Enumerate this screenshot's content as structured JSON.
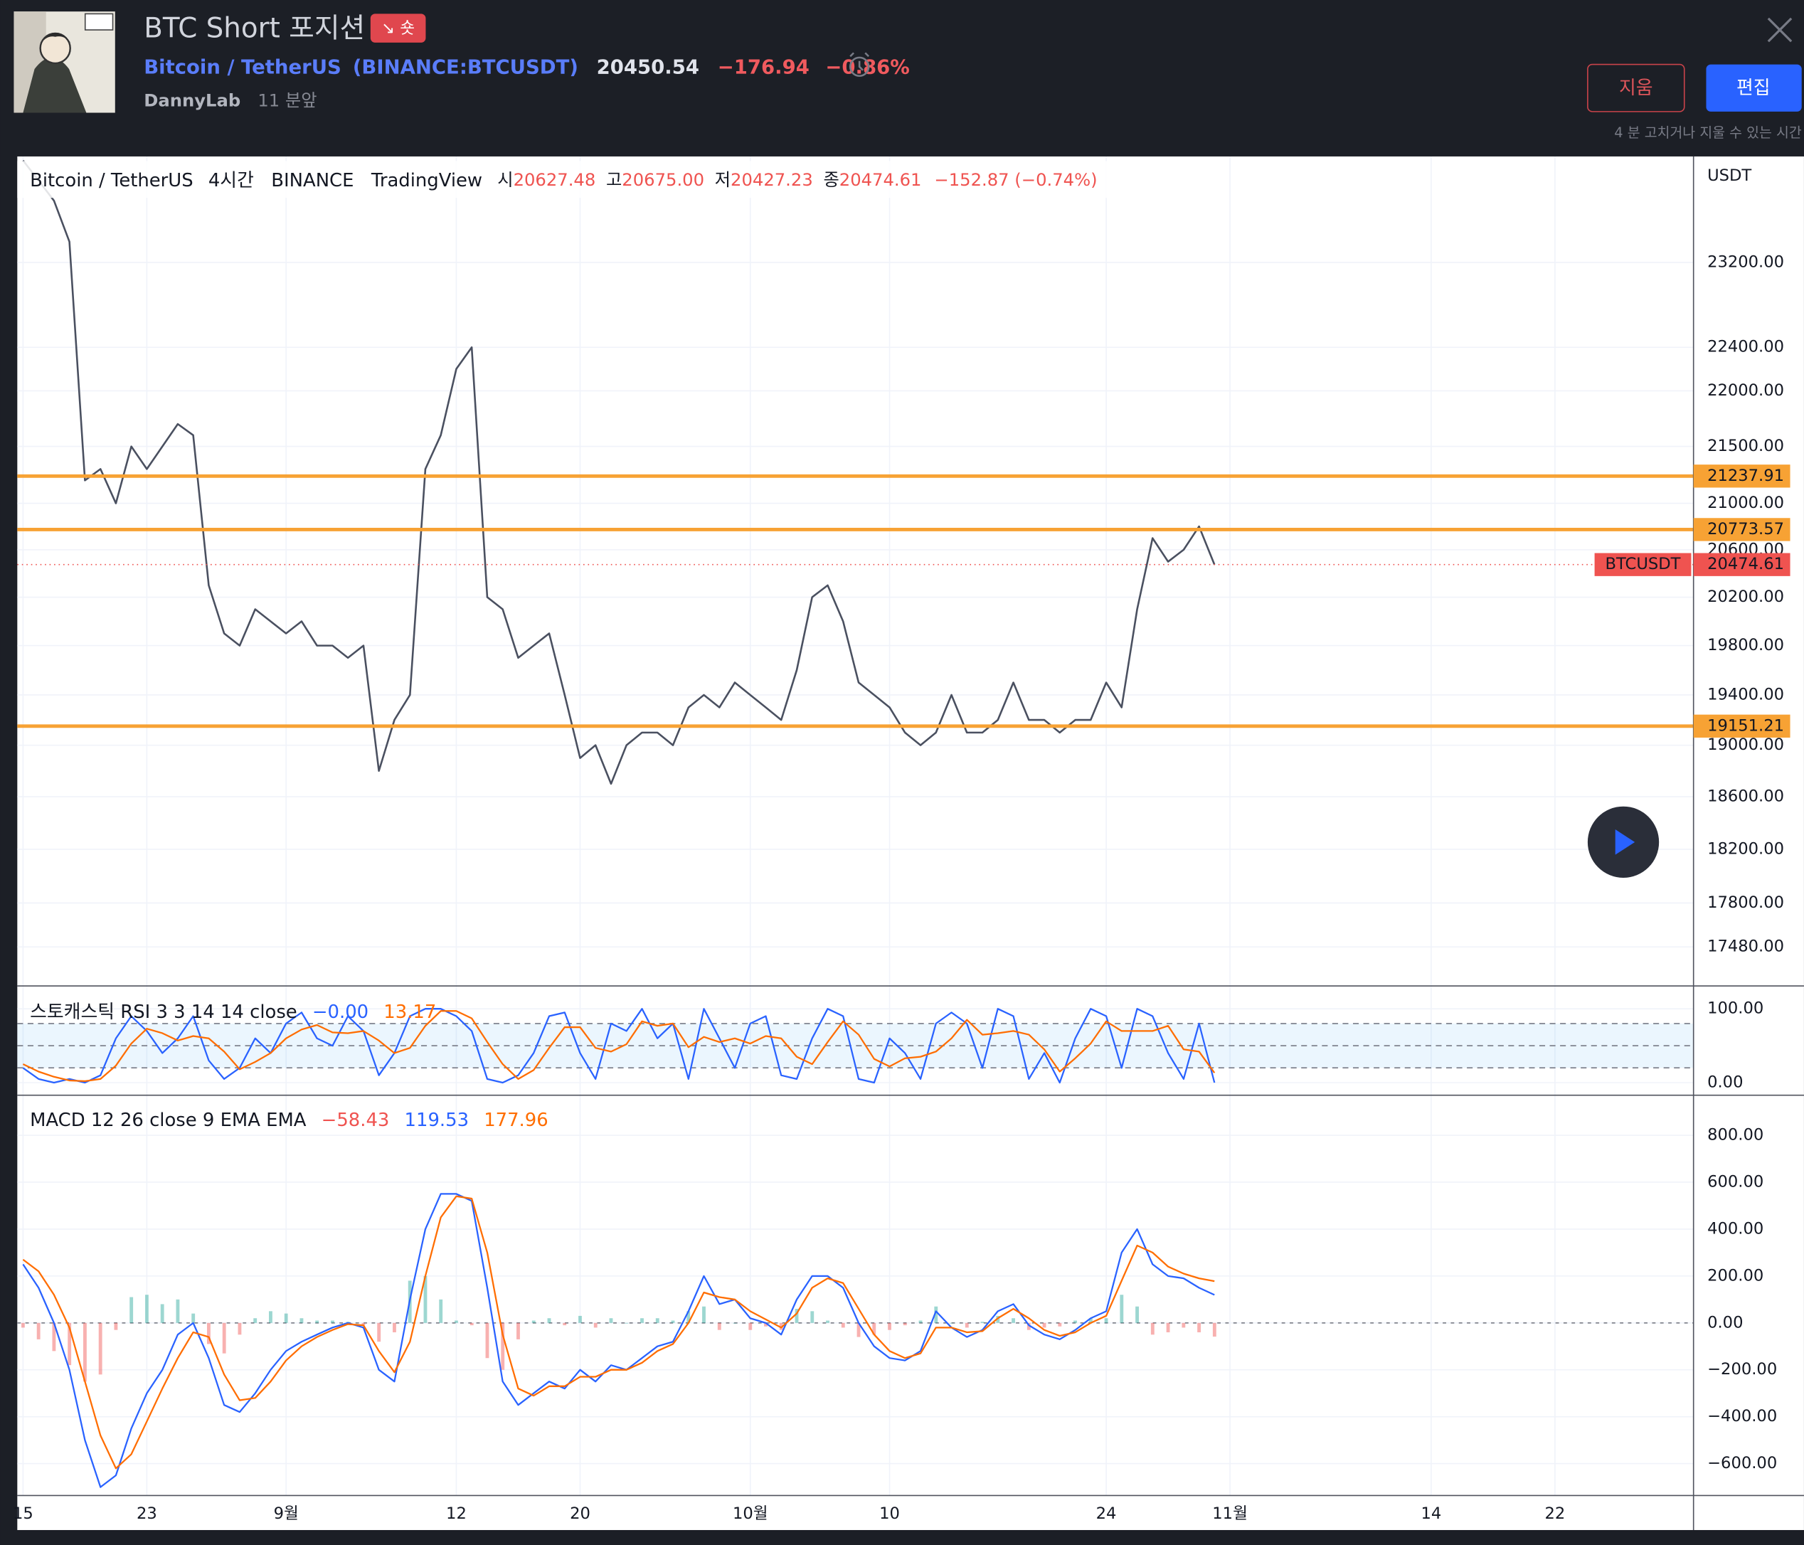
{
  "header": {
    "title": "BTC Short 포지션",
    "badge": "↘ 숏",
    "symbol_name": "Bitcoin / TetherUS",
    "symbol_code": "(BINANCE:BTCUSDT)",
    "price": "20450.54",
    "change": "−176.94",
    "change_percent": "−0.86%",
    "author": "DannyLab",
    "time": "11 분앞",
    "delete_button": "지움",
    "edit_button": "편집",
    "edit_note": "4 분 고치거나 지울 수 있는 시간"
  },
  "legend": {
    "symbol": "Bitcoin / TetherUS",
    "interval": "4시간",
    "exchange": "BINANCE",
    "source": "TradingView",
    "open_label": "시",
    "open": "20627.48",
    "high_label": "고",
    "high": "20675.00",
    "low_label": "저",
    "low": "20427.23",
    "close_label": "종",
    "close": "20474.61",
    "change": "−152.87 (−0.74%)"
  },
  "chart_data": {
    "categories": [
      "15",
      null,
      null,
      null,
      null,
      null,
      null,
      null,
      "23",
      null,
      null,
      null,
      null,
      null,
      null,
      null,
      null,
      "9월",
      null,
      null,
      null,
      null,
      null,
      null,
      null,
      null,
      null,
      null,
      "12",
      null,
      null,
      null,
      null,
      null,
      null,
      null,
      "20",
      null,
      null,
      null,
      null,
      null,
      null,
      null,
      null,
      null,
      null,
      "10월",
      null,
      null,
      null,
      null,
      null,
      null,
      null,
      null,
      "10",
      null,
      null,
      null,
      null,
      null,
      null,
      null,
      null,
      null,
      null,
      null,
      null,
      null,
      "24",
      null,
      null,
      null,
      null,
      null,
      null,
      null,
      "11월",
      null,
      null,
      null,
      null,
      null,
      null,
      null,
      null,
      null,
      null,
      null,
      null,
      "14",
      null,
      null,
      null,
      null,
      null,
      null,
      null,
      "22",
      null,
      null,
      null,
      null,
      null,
      null,
      null,
      null,
      null
    ],
    "panels": [
      {
        "type": "line",
        "axis_unit": "USDT",
        "log_scale": true,
        "grid": true,
        "ylim": [
          17200,
          24240
        ],
        "yticks": [
          {
            "value": 23200,
            "label": "23200.00"
          },
          {
            "value": 22400,
            "label": "22400.00"
          },
          {
            "value": 22000,
            "label": "22000.00"
          },
          {
            "value": 21500,
            "label": "21500.00"
          },
          {
            "value": 21000,
            "label": "21000.00"
          },
          {
            "value": 20600,
            "label": "20600.00"
          },
          {
            "value": 20200,
            "label": "20200.00"
          },
          {
            "value": 19800,
            "label": "19800.00"
          },
          {
            "value": 19400,
            "label": "19400.00"
          },
          {
            "value": 19000,
            "label": "19000.00"
          },
          {
            "value": 18600,
            "label": "18600.00"
          },
          {
            "value": 18200,
            "label": "18200.00"
          },
          {
            "value": 17800,
            "label": "17800.00"
          },
          {
            "value": 17480,
            "label": "17480.00"
          }
        ],
        "series": [
          {
            "color": "#4a5060",
            "values": [
              24200,
              24000,
              23800,
              23400,
              21200,
              21300,
              21000,
              21500,
              21300,
              21500,
              21700,
              21600,
              20300,
              19900,
              19800,
              20100,
              20000,
              19900,
              20000,
              19800,
              19800,
              19700,
              19800,
              18800,
              19200,
              19400,
              21300,
              21600,
              22200,
              22400,
              20200,
              20100,
              19700,
              19800,
              19900,
              19400,
              18900,
              19000,
              18700,
              19000,
              19100,
              19100,
              19000,
              19300,
              19400,
              19300,
              19500,
              19400,
              19300,
              19200,
              19600,
              20200,
              20300,
              20000,
              19500,
              19400,
              19300,
              19100,
              19000,
              19100,
              19400,
              19100,
              19100,
              19200,
              19500,
              19200,
              19200,
              19100,
              19200,
              19200,
              19500,
              19300,
              20100,
              20700,
              20500,
              20600,
              20800,
              20474.61,
              null,
              null,
              null,
              null,
              null,
              null,
              null,
              null,
              null,
              null,
              null,
              null,
              null,
              null,
              null,
              null,
              null,
              null,
              null,
              null,
              null,
              null,
              null,
              null,
              null,
              null,
              null,
              null,
              null,
              null,
              null
            ]
          }
        ],
        "levels": {
          "color": "#f7a234",
          "values": [
            21237.91,
            20773.57,
            19151.21
          ]
        },
        "last_price": {
          "label": "BTCUSDT",
          "value": 20474.61,
          "color": "#ef5350"
        }
      },
      {
        "type": "line",
        "title": "스토캐스틱 RSI 3 3 14 14 close",
        "ylim": [
          -17,
          131
        ],
        "yticks": [
          {
            "value": 100,
            "label": "100.00"
          },
          {
            "value": 0,
            "label": "0.00"
          }
        ],
        "bands": [
          80,
          50,
          20
        ],
        "series": [
          {
            "color": "#2962ff",
            "legend_value": "−0.00",
            "values": [
              20,
              5,
              0,
              5,
              0,
              10,
              60,
              90,
              70,
              40,
              60,
              90,
              30,
              5,
              20,
              60,
              40,
              80,
              95,
              60,
              50,
              90,
              70,
              10,
              40,
              90,
              100,
              100,
              90,
              70,
              5,
              0,
              10,
              40,
              90,
              95,
              40,
              5,
              80,
              70,
              100,
              60,
              80,
              5,
              100,
              60,
              20,
              80,
              90,
              10,
              5,
              60,
              100,
              90,
              5,
              0,
              60,
              40,
              5,
              80,
              95,
              80,
              20,
              100,
              90,
              5,
              40,
              0,
              60,
              100,
              90,
              20,
              100,
              90,
              40,
              5,
              80,
              0,
              null,
              null,
              null,
              null,
              null,
              null,
              null,
              null,
              null,
              null,
              null,
              null,
              null,
              null,
              null,
              null,
              null,
              null,
              null,
              null,
              null,
              null,
              null,
              null,
              null,
              null,
              null,
              null,
              null,
              null,
              null
            ]
          },
          {
            "color": "#ff6d00",
            "legend_value": "13.17",
            "values": [
              25,
              15,
              8,
              3,
              2,
              5,
              23,
              53,
              73,
              67,
              57,
              63,
              60,
              42,
              18,
              28,
              40,
              60,
              72,
              78,
              68,
              67,
              70,
              57,
              40,
              47,
              77,
              97,
              97,
              87,
              55,
              25,
              5,
              17,
              47,
              75,
              75,
              47,
              42,
              52,
              83,
              77,
              80,
              48,
              62,
              55,
              60,
              53,
              63,
              60,
              35,
              25,
              55,
              83,
              65,
              32,
              22,
              33,
              35,
              42,
              60,
              85,
              65,
              67,
              70,
              65,
              45,
              15,
              33,
              53,
              83,
              70,
              70,
              70,
              77,
              45,
              42,
              13.17,
              null,
              null,
              null,
              null,
              null,
              null,
              null,
              null,
              null,
              null,
              null,
              null,
              null,
              null,
              null,
              null,
              null,
              null,
              null,
              null,
              null,
              null,
              null,
              null,
              null,
              null,
              null,
              null,
              null,
              null,
              null
            ]
          }
        ]
      },
      {
        "type": "macd",
        "title": "MACD 12 26 close 9 EMA EMA",
        "ylim": [
          -736,
          971
        ],
        "yticks": [
          {
            "value": 800,
            "label": "800.00"
          },
          {
            "value": 600,
            "label": "600.00"
          },
          {
            "value": 400,
            "label": "400.00"
          },
          {
            "value": 200,
            "label": "200.00"
          },
          {
            "value": 0,
            "label": "0.00"
          },
          {
            "value": -200,
            "label": "−200.00"
          },
          {
            "value": -400,
            "label": "−400.00"
          },
          {
            "value": -600,
            "label": "−600.00"
          }
        ],
        "series": [
          {
            "type": "bar",
            "color": "#ef5350",
            "color_positive": "#26a69a",
            "legend_value": "−58.43",
            "values": [
              -20,
              -70,
              -120,
              -180,
              -250,
              -220,
              -30,
              110,
              120,
              80,
              100,
              40,
              -90,
              -130,
              -50,
              20,
              50,
              40,
              20,
              10,
              10,
              5,
              -10,
              -80,
              -40,
              180,
              200,
              100,
              10,
              -10,
              -150,
              -200,
              -70,
              10,
              20,
              -10,
              30,
              -20,
              20,
              0,
              20,
              20,
              10,
              50,
              70,
              -30,
              0,
              -30,
              -15,
              -30,
              60,
              50,
              10,
              -20,
              -60,
              -50,
              -30,
              -10,
              10,
              70,
              0,
              -20,
              5,
              30,
              20,
              -30,
              -20,
              -15,
              10,
              20,
              20,
              120,
              70,
              -50,
              -40,
              -20,
              -40,
              -58.43,
              null,
              null,
              null,
              null,
              null,
              null,
              null,
              null,
              null,
              null,
              null,
              null,
              null,
              null,
              null,
              null,
              null,
              null,
              null,
              null,
              null,
              null,
              null,
              null,
              null,
              null,
              null,
              null,
              null,
              null,
              null
            ]
          },
          {
            "type": "line",
            "color": "#2962ff",
            "legend_value": "119.53",
            "values": [
              250,
              150,
              0,
              -200,
              -500,
              -700,
              -650,
              -450,
              -300,
              -200,
              -50,
              0,
              -150,
              -350,
              -380,
              -300,
              -200,
              -120,
              -80,
              -50,
              -20,
              0,
              -20,
              -200,
              -250,
              100,
              400,
              550,
              550,
              520,
              150,
              -250,
              -350,
              -300,
              -250,
              -280,
              -200,
              -250,
              -180,
              -200,
              -150,
              -100,
              -80,
              50,
              200,
              80,
              100,
              20,
              0,
              -50,
              100,
              200,
              200,
              150,
              0,
              -100,
              -150,
              -160,
              -120,
              50,
              -20,
              -60,
              -30,
              50,
              80,
              -10,
              -50,
              -70,
              -30,
              20,
              50,
              300,
              400,
              250,
              200,
              190,
              150,
              119.53,
              null,
              null,
              null,
              null,
              null,
              null,
              null,
              null,
              null,
              null,
              null,
              null,
              null,
              null,
              null,
              null,
              null,
              null,
              null,
              null,
              null,
              null,
              null,
              null,
              null,
              null,
              null,
              null,
              null,
              null,
              null
            ]
          },
          {
            "type": "line",
            "color": "#ff6d00",
            "legend_value": "177.96",
            "values": [
              270,
              220,
              120,
              -20,
              -250,
              -480,
              -620,
              -560,
              -420,
              -280,
              -150,
              -40,
              -60,
              -220,
              -330,
              -320,
              -250,
              -160,
              -100,
              -60,
              -30,
              -5,
              -10,
              -120,
              -210,
              -80,
              200,
              450,
              540,
              530,
              300,
              -50,
              -280,
              -310,
              -270,
              -270,
              -230,
              -230,
              -200,
              -200,
              -170,
              -120,
              -90,
              0,
              130,
              110,
              100,
              50,
              15,
              -20,
              40,
              150,
              190,
              170,
              60,
              -50,
              -120,
              -150,
              -130,
              -20,
              -20,
              -40,
              -35,
              20,
              60,
              20,
              -30,
              -55,
              -40,
              0,
              30,
              180,
              330,
              300,
              240,
              210,
              190,
              177.96,
              null,
              null,
              null,
              null,
              null,
              null,
              null,
              null,
              null,
              null,
              null,
              null,
              null,
              null,
              null,
              null,
              null,
              null,
              null,
              null,
              null,
              null,
              null,
              null,
              null,
              null,
              null,
              null,
              null,
              null,
              null
            ]
          }
        ]
      }
    ]
  }
}
